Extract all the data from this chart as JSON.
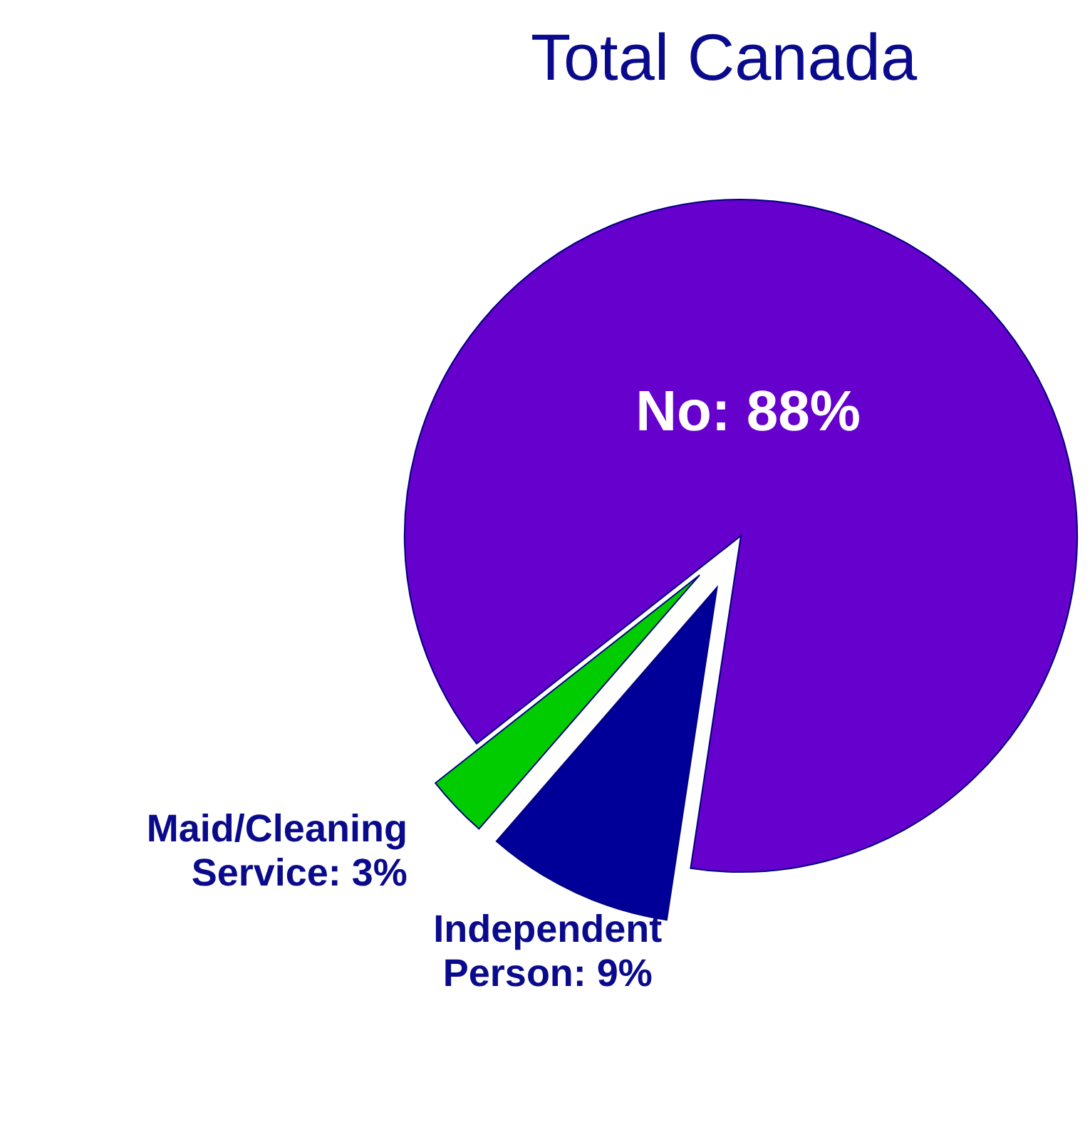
{
  "chart_data": {
    "type": "pie",
    "title": "Total Canada",
    "categories": [
      "No",
      "Independent Person",
      "Maid/Cleaning Service"
    ],
    "values": [
      88,
      9,
      3
    ],
    "colors": [
      "#6600cc",
      "#000099",
      "#00cc00"
    ],
    "value_labels": [
      "88%",
      "9%",
      "3%"
    ]
  }
}
